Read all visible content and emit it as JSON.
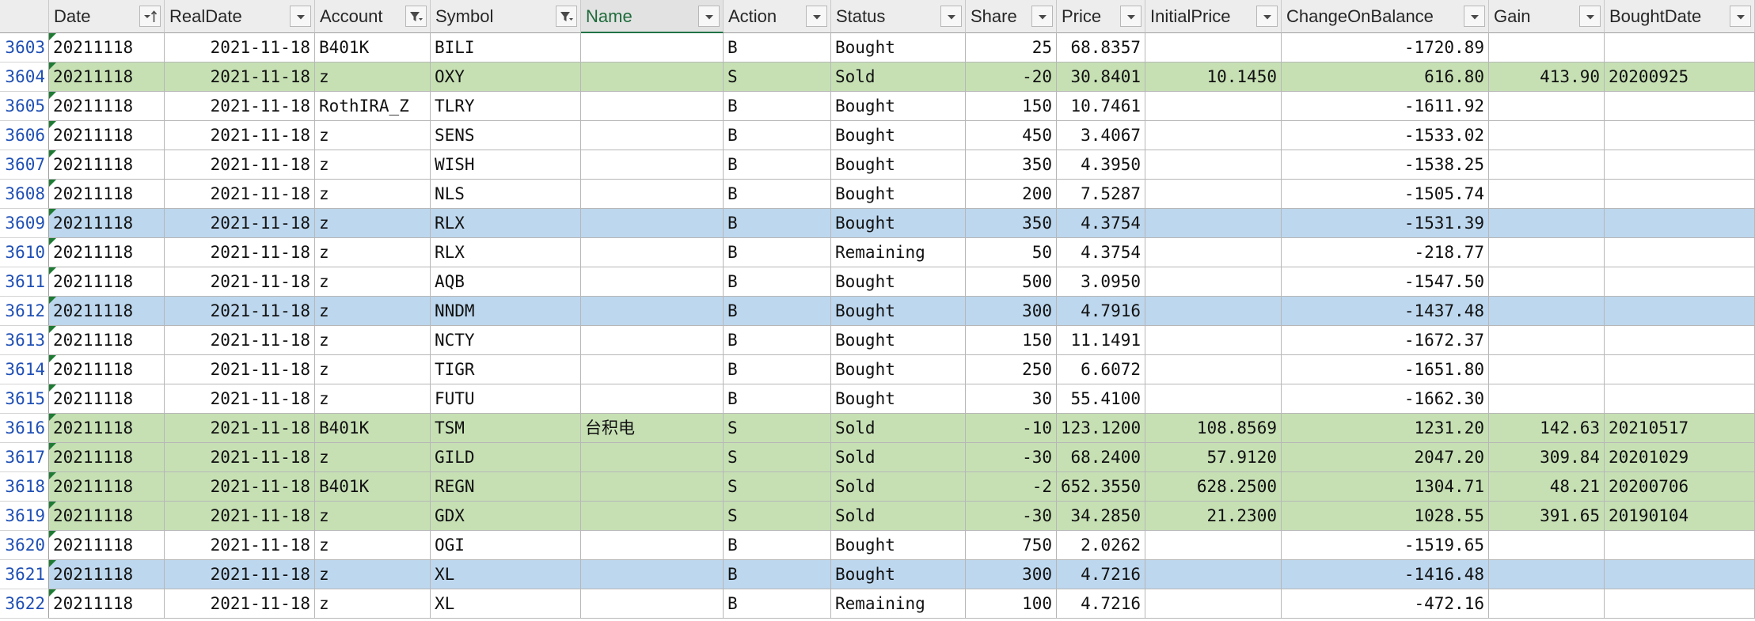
{
  "columns": [
    {
      "key": "date",
      "label": "Date",
      "type": "text",
      "filter": "sort-asc",
      "active": false
    },
    {
      "key": "realdate",
      "label": "RealDate",
      "type": "num",
      "filter": "dropdown",
      "active": false
    },
    {
      "key": "account",
      "label": "Account",
      "type": "text",
      "filter": "filter",
      "active": false
    },
    {
      "key": "symbol",
      "label": "Symbol",
      "type": "text",
      "filter": "filter",
      "active": false
    },
    {
      "key": "name",
      "label": "Name",
      "type": "text",
      "filter": "dropdown",
      "active": true
    },
    {
      "key": "action",
      "label": "Action",
      "type": "text",
      "filter": "dropdown",
      "active": false
    },
    {
      "key": "status",
      "label": "Status",
      "type": "text",
      "filter": "dropdown",
      "active": false
    },
    {
      "key": "share",
      "label": "Share",
      "type": "num",
      "filter": "dropdown",
      "active": false
    },
    {
      "key": "price",
      "label": "Price",
      "type": "num",
      "filter": "dropdown",
      "active": false
    },
    {
      "key": "initialprice",
      "label": "InitialPrice",
      "type": "num",
      "filter": "dropdown",
      "active": false
    },
    {
      "key": "changeonbalance",
      "label": "ChangeOnBalance",
      "type": "num",
      "filter": "dropdown",
      "active": false
    },
    {
      "key": "gain",
      "label": "Gain",
      "type": "num",
      "filter": "dropdown",
      "active": false
    },
    {
      "key": "boughtdate",
      "label": "BoughtDate",
      "type": "text",
      "filter": "dropdown",
      "active": false
    }
  ],
  "rows": [
    {
      "n": "3603",
      "hl": "white",
      "date": "20211118",
      "realdate": "2021-11-18",
      "account": "B401K",
      "symbol": "BILI",
      "name": "",
      "action": "B",
      "status": "Bought",
      "share": "25",
      "price": "68.8357",
      "initialprice": "",
      "changeonbalance": "-1720.89",
      "gain": "",
      "boughtdate": ""
    },
    {
      "n": "3604",
      "hl": "green",
      "date": "20211118",
      "realdate": "2021-11-18",
      "account": "z",
      "symbol": "OXY",
      "name": "",
      "action": "S",
      "status": "Sold",
      "share": "-20",
      "price": "30.8401",
      "initialprice": "10.1450",
      "changeonbalance": "616.80",
      "gain": "413.90",
      "boughtdate": "20200925"
    },
    {
      "n": "3605",
      "hl": "white",
      "date": "20211118",
      "realdate": "2021-11-18",
      "account": "RothIRA_Z",
      "symbol": "TLRY",
      "name": "",
      "action": "B",
      "status": "Bought",
      "share": "150",
      "price": "10.7461",
      "initialprice": "",
      "changeonbalance": "-1611.92",
      "gain": "",
      "boughtdate": ""
    },
    {
      "n": "3606",
      "hl": "white",
      "date": "20211118",
      "realdate": "2021-11-18",
      "account": "z",
      "symbol": "SENS",
      "name": "",
      "action": "B",
      "status": "Bought",
      "share": "450",
      "price": "3.4067",
      "initialprice": "",
      "changeonbalance": "-1533.02",
      "gain": "",
      "boughtdate": ""
    },
    {
      "n": "3607",
      "hl": "white",
      "date": "20211118",
      "realdate": "2021-11-18",
      "account": "z",
      "symbol": "WISH",
      "name": "",
      "action": "B",
      "status": "Bought",
      "share": "350",
      "price": "4.3950",
      "initialprice": "",
      "changeonbalance": "-1538.25",
      "gain": "",
      "boughtdate": ""
    },
    {
      "n": "3608",
      "hl": "white",
      "date": "20211118",
      "realdate": "2021-11-18",
      "account": "z",
      "symbol": "NLS",
      "name": "",
      "action": "B",
      "status": "Bought",
      "share": "200",
      "price": "7.5287",
      "initialprice": "",
      "changeonbalance": "-1505.74",
      "gain": "",
      "boughtdate": ""
    },
    {
      "n": "3609",
      "hl": "blue",
      "date": "20211118",
      "realdate": "2021-11-18",
      "account": "z",
      "symbol": "RLX",
      "name": "",
      "action": "B",
      "status": "Bought",
      "share": "350",
      "price": "4.3754",
      "initialprice": "",
      "changeonbalance": "-1531.39",
      "gain": "",
      "boughtdate": ""
    },
    {
      "n": "3610",
      "hl": "white",
      "date": "20211118",
      "realdate": "2021-11-18",
      "account": "z",
      "symbol": "RLX",
      "name": "",
      "action": "B",
      "status": "Remaining",
      "share": "50",
      "price": "4.3754",
      "initialprice": "",
      "changeonbalance": "-218.77",
      "gain": "",
      "boughtdate": ""
    },
    {
      "n": "3611",
      "hl": "white",
      "date": "20211118",
      "realdate": "2021-11-18",
      "account": "z",
      "symbol": "AQB",
      "name": "",
      "action": "B",
      "status": "Bought",
      "share": "500",
      "price": "3.0950",
      "initialprice": "",
      "changeonbalance": "-1547.50",
      "gain": "",
      "boughtdate": ""
    },
    {
      "n": "3612",
      "hl": "blue",
      "date": "20211118",
      "realdate": "2021-11-18",
      "account": "z",
      "symbol": "NNDM",
      "name": "",
      "action": "B",
      "status": "Bought",
      "share": "300",
      "price": "4.7916",
      "initialprice": "",
      "changeonbalance": "-1437.48",
      "gain": "",
      "boughtdate": ""
    },
    {
      "n": "3613",
      "hl": "white",
      "date": "20211118",
      "realdate": "2021-11-18",
      "account": "z",
      "symbol": "NCTY",
      "name": "",
      "action": "B",
      "status": "Bought",
      "share": "150",
      "price": "11.1491",
      "initialprice": "",
      "changeonbalance": "-1672.37",
      "gain": "",
      "boughtdate": ""
    },
    {
      "n": "3614",
      "hl": "white",
      "date": "20211118",
      "realdate": "2021-11-18",
      "account": "z",
      "symbol": "TIGR",
      "name": "",
      "action": "B",
      "status": "Bought",
      "share": "250",
      "price": "6.6072",
      "initialprice": "",
      "changeonbalance": "-1651.80",
      "gain": "",
      "boughtdate": ""
    },
    {
      "n": "3615",
      "hl": "white",
      "date": "20211118",
      "realdate": "2021-11-18",
      "account": "z",
      "symbol": "FUTU",
      "name": "",
      "action": "B",
      "status": "Bought",
      "share": "30",
      "price": "55.4100",
      "initialprice": "",
      "changeonbalance": "-1662.30",
      "gain": "",
      "boughtdate": ""
    },
    {
      "n": "3616",
      "hl": "green",
      "date": "20211118",
      "realdate": "2021-11-18",
      "account": "B401K",
      "symbol": "TSM",
      "name": "台积电",
      "action": "S",
      "status": "Sold",
      "share": "-10",
      "price": "123.1200",
      "initialprice": "108.8569",
      "changeonbalance": "1231.20",
      "gain": "142.63",
      "boughtdate": "20210517"
    },
    {
      "n": "3617",
      "hl": "green",
      "date": "20211118",
      "realdate": "2021-11-18",
      "account": "z",
      "symbol": "GILD",
      "name": "",
      "action": "S",
      "status": "Sold",
      "share": "-30",
      "price": "68.2400",
      "initialprice": "57.9120",
      "changeonbalance": "2047.20",
      "gain": "309.84",
      "boughtdate": "20201029"
    },
    {
      "n": "3618",
      "hl": "green",
      "date": "20211118",
      "realdate": "2021-11-18",
      "account": "B401K",
      "symbol": "REGN",
      "name": "",
      "action": "S",
      "status": "Sold",
      "share": "-2",
      "price": "652.3550",
      "initialprice": "628.2500",
      "changeonbalance": "1304.71",
      "gain": "48.21",
      "boughtdate": "20200706"
    },
    {
      "n": "3619",
      "hl": "green",
      "date": "20211118",
      "realdate": "2021-11-18",
      "account": "z",
      "symbol": "GDX",
      "name": "",
      "action": "S",
      "status": "Sold",
      "share": "-30",
      "price": "34.2850",
      "initialprice": "21.2300",
      "changeonbalance": "1028.55",
      "gain": "391.65",
      "boughtdate": "20190104"
    },
    {
      "n": "3620",
      "hl": "white",
      "date": "20211118",
      "realdate": "2021-11-18",
      "account": "z",
      "symbol": "OGI",
      "name": "",
      "action": "B",
      "status": "Bought",
      "share": "750",
      "price": "2.0262",
      "initialprice": "",
      "changeonbalance": "-1519.65",
      "gain": "",
      "boughtdate": ""
    },
    {
      "n": "3621",
      "hl": "blue",
      "date": "20211118",
      "realdate": "2021-11-18",
      "account": "z",
      "symbol": "XL",
      "name": "",
      "action": "B",
      "status": "Bought",
      "share": "300",
      "price": "4.7216",
      "initialprice": "",
      "changeonbalance": "-1416.48",
      "gain": "",
      "boughtdate": ""
    },
    {
      "n": "3622",
      "hl": "white",
      "date": "20211118",
      "realdate": "2021-11-18",
      "account": "z",
      "symbol": "XL",
      "name": "",
      "action": "B",
      "status": "Remaining",
      "share": "100",
      "price": "4.7216",
      "initialprice": "",
      "changeonbalance": "-472.16",
      "gain": "",
      "boughtdate": ""
    }
  ]
}
